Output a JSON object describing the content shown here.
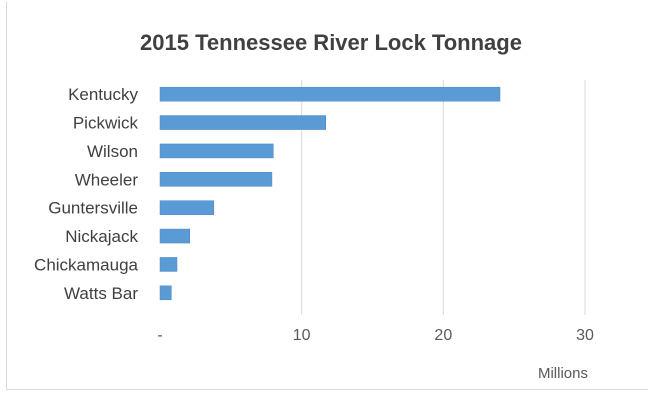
{
  "chart_data": {
    "type": "bar",
    "orientation": "horizontal",
    "title": "2015 Tennessee River Lock Tonnage",
    "categories": [
      "Kentucky",
      "Pickwick",
      "Wilson",
      "Wheeler",
      "Guntersville",
      "Nickajack",
      "Chickamauga",
      "Watts Bar"
    ],
    "values": [
      24.0,
      11.7,
      8.0,
      7.9,
      3.8,
      2.1,
      1.2,
      0.8
    ],
    "xlim": [
      0,
      30
    ],
    "x_ticks": [
      0,
      10,
      20,
      30
    ],
    "x_tick_labels": [
      "-",
      "10",
      "20",
      "30"
    ],
    "x_unit_label": "Millions",
    "grid": "vertical",
    "legend": "none",
    "colors": {
      "bar": "#5b9bd5",
      "bar_edge": "#4a86c5",
      "grid": "#d9d9d9",
      "text": "#404040"
    }
  }
}
